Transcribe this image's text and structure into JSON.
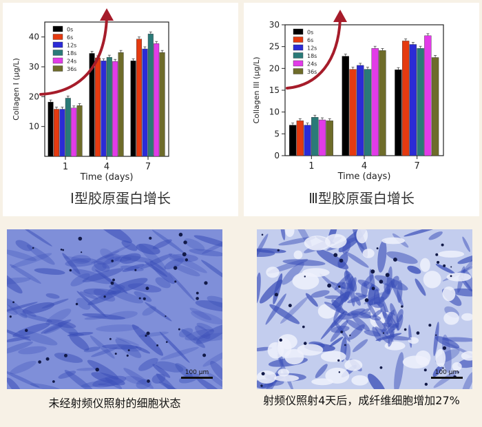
{
  "colors": {
    "series": [
      "#000000",
      "#e53a10",
      "#2b2bd6",
      "#2a7a78",
      "#e23be8",
      "#6e6c2a"
    ],
    "arrow": "#a61c2a",
    "cell_stain": "#3b4fb8",
    "page_bg": "#f7f1e6"
  },
  "chart_data": [
    {
      "type": "bar",
      "ylabel": "Collagen I (μg/L)",
      "xlabel": "Time (days)",
      "categories": [
        "1",
        "4",
        "7"
      ],
      "ylim": [
        0,
        45
      ],
      "yticks": [
        10,
        20,
        30,
        40
      ],
      "legend_position": "top-left",
      "series": [
        {
          "name": "0s",
          "values": [
            18.2,
            34.5,
            32.0
          ]
        },
        {
          "name": "6s",
          "values": [
            15.8,
            33.0,
            39.3
          ]
        },
        {
          "name": "12s",
          "values": [
            15.8,
            32.0,
            36.0
          ]
        },
        {
          "name": "18s",
          "values": [
            19.5,
            33.2,
            41.0
          ]
        },
        {
          "name": "24s",
          "values": [
            16.2,
            31.8,
            37.8
          ]
        },
        {
          "name": "36s",
          "values": [
            17.0,
            34.8,
            34.8
          ]
        }
      ],
      "caption": "I型胶原蛋白增长"
    },
    {
      "type": "bar",
      "ylabel": "Collagen III (μg/L)",
      "xlabel": "Time (days)",
      "categories": [
        "1",
        "4",
        "7"
      ],
      "ylim": [
        0,
        30
      ],
      "yticks": [
        0,
        5,
        10,
        15,
        20,
        25,
        30
      ],
      "legend_position": "top-left",
      "series": [
        {
          "name": "0s",
          "values": [
            7.0,
            22.8,
            19.7
          ]
        },
        {
          "name": "6s",
          "values": [
            8.0,
            19.8,
            26.3
          ]
        },
        {
          "name": "12s",
          "values": [
            7.0,
            20.7,
            25.5
          ]
        },
        {
          "name": "18s",
          "values": [
            8.8,
            19.8,
            24.6
          ]
        },
        {
          "name": "24s",
          "values": [
            8.2,
            24.6,
            27.5
          ]
        },
        {
          "name": "36s",
          "values": [
            8.0,
            24.1,
            22.5
          ]
        }
      ],
      "caption": "Ⅲ型胶原蛋白增长"
    }
  ],
  "micrographs": [
    {
      "scale_bar": "100 μm",
      "caption": "未经射频仪照射的细胞状态"
    },
    {
      "scale_bar": "100 μm",
      "caption": "射频仪照射4天后，成纤维细胞增加27%"
    }
  ]
}
